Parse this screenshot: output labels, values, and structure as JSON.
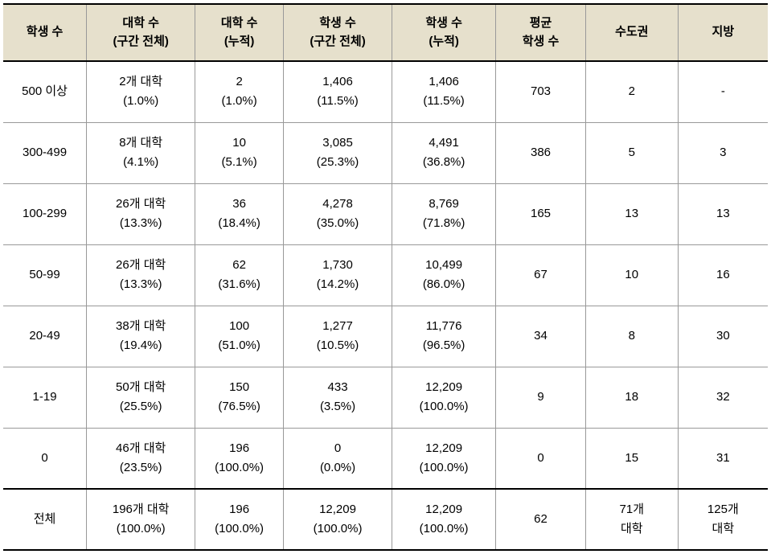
{
  "table": {
    "columns": [
      {
        "line1": "학생 수",
        "line2": ""
      },
      {
        "line1": "대학 수",
        "line2": "(구간 전체)"
      },
      {
        "line1": "대학 수",
        "line2": "(누적)"
      },
      {
        "line1": "학생 수",
        "line2": "(구간 전체)"
      },
      {
        "line1": "학생 수",
        "line2": "(누적)"
      },
      {
        "line1": "평균",
        "line2": "학생 수"
      },
      {
        "line1": "수도권",
        "line2": ""
      },
      {
        "line1": "지방",
        "line2": ""
      }
    ],
    "rows": [
      {
        "c0": {
          "l1": "500 이상"
        },
        "c1": {
          "l1": "2개 대학",
          "l2": "(1.0%)"
        },
        "c2": {
          "l1": "2",
          "l2": "(1.0%)"
        },
        "c3": {
          "l1": "1,406",
          "l2": "(11.5%)"
        },
        "c4": {
          "l1": "1,406",
          "l2": "(11.5%)"
        },
        "c5": {
          "l1": "703"
        },
        "c6": {
          "l1": "2"
        },
        "c7": {
          "l1": "-"
        }
      },
      {
        "c0": {
          "l1": "300-499"
        },
        "c1": {
          "l1": "8개 대학",
          "l2": "(4.1%)"
        },
        "c2": {
          "l1": "10",
          "l2": "(5.1%)"
        },
        "c3": {
          "l1": "3,085",
          "l2": "(25.3%)"
        },
        "c4": {
          "l1": "4,491",
          "l2": "(36.8%)"
        },
        "c5": {
          "l1": "386"
        },
        "c6": {
          "l1": "5"
        },
        "c7": {
          "l1": "3"
        }
      },
      {
        "c0": {
          "l1": "100-299"
        },
        "c1": {
          "l1": "26개 대학",
          "l2": "(13.3%)"
        },
        "c2": {
          "l1": "36",
          "l2": "(18.4%)"
        },
        "c3": {
          "l1": "4,278",
          "l2": "(35.0%)"
        },
        "c4": {
          "l1": "8,769",
          "l2": "(71.8%)"
        },
        "c5": {
          "l1": "165"
        },
        "c6": {
          "l1": "13"
        },
        "c7": {
          "l1": "13"
        }
      },
      {
        "c0": {
          "l1": "50-99"
        },
        "c1": {
          "l1": "26개 대학",
          "l2": "(13.3%)"
        },
        "c2": {
          "l1": "62",
          "l2": "(31.6%)"
        },
        "c3": {
          "l1": "1,730",
          "l2": "(14.2%)"
        },
        "c4": {
          "l1": "10,499",
          "l2": "(86.0%)"
        },
        "c5": {
          "l1": "67"
        },
        "c6": {
          "l1": "10"
        },
        "c7": {
          "l1": "16"
        }
      },
      {
        "c0": {
          "l1": "20-49"
        },
        "c1": {
          "l1": "38개 대학",
          "l2": "(19.4%)"
        },
        "c2": {
          "l1": "100",
          "l2": "(51.0%)"
        },
        "c3": {
          "l1": "1,277",
          "l2": "(10.5%)"
        },
        "c4": {
          "l1": "11,776",
          "l2": "(96.5%)"
        },
        "c5": {
          "l1": "34"
        },
        "c6": {
          "l1": "8"
        },
        "c7": {
          "l1": "30"
        }
      },
      {
        "c0": {
          "l1": "1-19"
        },
        "c1": {
          "l1": "50개 대학",
          "l2": "(25.5%)"
        },
        "c2": {
          "l1": "150",
          "l2": "(76.5%)"
        },
        "c3": {
          "l1": "433",
          "l2": "(3.5%)"
        },
        "c4": {
          "l1": "12,209",
          "l2": "(100.0%)"
        },
        "c5": {
          "l1": "9"
        },
        "c6": {
          "l1": "18"
        },
        "c7": {
          "l1": "32"
        }
      },
      {
        "c0": {
          "l1": "0"
        },
        "c1": {
          "l1": "46개 대학",
          "l2": "(23.5%)"
        },
        "c2": {
          "l1": "196",
          "l2": "(100.0%)"
        },
        "c3": {
          "l1": "0",
          "l2": "(0.0%)"
        },
        "c4": {
          "l1": "12,209",
          "l2": "(100.0%)"
        },
        "c5": {
          "l1": "0"
        },
        "c6": {
          "l1": "15"
        },
        "c7": {
          "l1": "31"
        }
      }
    ],
    "total": {
      "c0": {
        "l1": "전체"
      },
      "c1": {
        "l1": "196개 대학",
        "l2": "(100.0%)"
      },
      "c2": {
        "l1": "196",
        "l2": "(100.0%)"
      },
      "c3": {
        "l1": "12,209",
        "l2": "(100.0%)"
      },
      "c4": {
        "l1": "12,209",
        "l2": "(100.0%)"
      },
      "c5": {
        "l1": "62"
      },
      "c6": {
        "l1": "71개",
        "l2": "대학"
      },
      "c7": {
        "l1": "125개",
        "l2": "대학"
      }
    }
  }
}
